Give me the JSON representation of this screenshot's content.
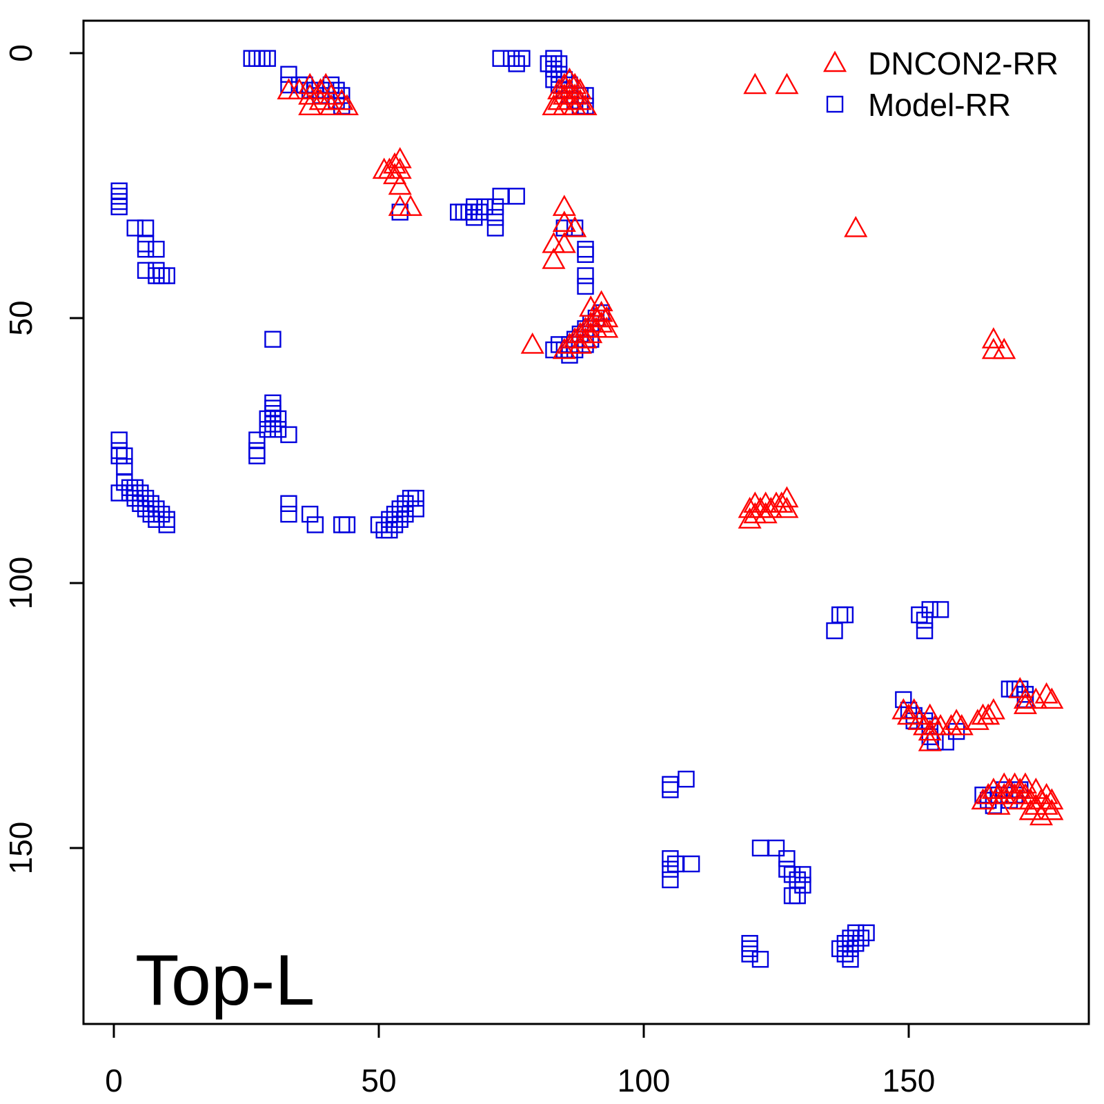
{
  "colors": {
    "dncon2": "#ff0000",
    "model": "#0000dd",
    "axis": "#000000"
  },
  "chart_data": {
    "type": "scatter",
    "title": "",
    "xlabel": "",
    "ylabel": "",
    "xlim": [
      -6,
      184
    ],
    "ylim": [
      -6,
      184
    ],
    "y_reversed": true,
    "grid": false,
    "legend_position": "top-right",
    "annotation": "Top-L",
    "x_ticks": [
      0,
      50,
      100,
      150
    ],
    "y_ticks": [
      0,
      50,
      100,
      150
    ],
    "series": [
      {
        "name": "DNCON2-RR",
        "marker": "triangle-open",
        "color": "#ff0000",
        "points": [
          [
            33,
            7
          ],
          [
            35,
            7
          ],
          [
            37,
            6
          ],
          [
            37,
            8
          ],
          [
            37,
            10
          ],
          [
            39,
            7
          ],
          [
            39,
            9
          ],
          [
            40,
            6
          ],
          [
            41,
            8
          ],
          [
            41,
            10
          ],
          [
            43,
            9
          ],
          [
            44,
            10
          ],
          [
            83,
            10
          ],
          [
            84,
            9
          ],
          [
            84,
            7
          ],
          [
            85,
            6
          ],
          [
            85,
            8
          ],
          [
            85,
            10
          ],
          [
            86,
            5
          ],
          [
            86,
            7
          ],
          [
            86,
            9
          ],
          [
            87,
            6
          ],
          [
            87,
            8
          ],
          [
            87,
            10
          ],
          [
            88,
            7
          ],
          [
            88,
            9
          ],
          [
            89,
            10
          ],
          [
            51,
            22
          ],
          [
            52,
            22
          ],
          [
            53,
            21
          ],
          [
            53,
            23
          ],
          [
            54,
            20
          ],
          [
            54,
            22
          ],
          [
            54,
            25
          ],
          [
            54,
            29
          ],
          [
            56,
            29
          ],
          [
            85,
            29
          ],
          [
            85,
            32
          ],
          [
            87,
            33
          ],
          [
            83,
            36
          ],
          [
            85,
            36
          ],
          [
            83,
            39
          ],
          [
            79,
            55
          ],
          [
            85,
            56
          ],
          [
            86,
            55
          ],
          [
            87,
            54
          ],
          [
            88,
            53
          ],
          [
            88,
            55
          ],
          [
            89,
            52
          ],
          [
            89,
            54
          ],
          [
            90,
            48
          ],
          [
            90,
            51
          ],
          [
            90,
            53
          ],
          [
            91,
            50
          ],
          [
            91,
            52
          ],
          [
            92,
            47
          ],
          [
            92,
            49
          ],
          [
            92,
            51
          ],
          [
            93,
            50
          ],
          [
            93,
            52
          ],
          [
            121,
            6
          ],
          [
            127,
            6
          ],
          [
            140,
            33
          ],
          [
            166,
            54
          ],
          [
            166,
            56
          ],
          [
            168,
            56
          ],
          [
            120,
            86
          ],
          [
            120,
            88
          ],
          [
            121,
            85
          ],
          [
            121,
            87
          ],
          [
            122,
            86
          ],
          [
            123,
            85
          ],
          [
            123,
            87
          ],
          [
            124,
            86
          ],
          [
            125,
            85
          ],
          [
            126,
            85
          ],
          [
            127,
            86
          ],
          [
            127,
            84
          ],
          [
            149,
            124
          ],
          [
            150,
            125
          ],
          [
            151,
            124
          ],
          [
            152,
            126
          ],
          [
            153,
            127
          ],
          [
            154,
            125
          ],
          [
            154,
            128
          ],
          [
            154,
            130
          ],
          [
            155,
            127
          ],
          [
            156,
            127
          ],
          [
            158,
            127
          ],
          [
            159,
            126
          ],
          [
            160,
            127
          ],
          [
            163,
            126
          ],
          [
            164,
            125
          ],
          [
            165,
            125
          ],
          [
            166,
            124
          ],
          [
            171,
            120
          ],
          [
            172,
            122
          ],
          [
            172,
            123
          ],
          [
            174,
            122
          ],
          [
            176,
            121
          ],
          [
            177,
            122
          ],
          [
            164,
            141
          ],
          [
            165,
            140
          ],
          [
            166,
            139
          ],
          [
            167,
            140
          ],
          [
            167,
            142
          ],
          [
            168,
            138
          ],
          [
            168,
            140
          ],
          [
            169,
            139
          ],
          [
            170,
            138
          ],
          [
            170,
            140
          ],
          [
            171,
            139
          ],
          [
            171,
            141
          ],
          [
            172,
            138
          ],
          [
            172,
            140
          ],
          [
            173,
            141
          ],
          [
            173,
            143
          ],
          [
            174,
            139
          ],
          [
            174,
            142
          ],
          [
            175,
            141
          ],
          [
            175,
            144
          ],
          [
            176,
            140
          ],
          [
            176,
            142
          ],
          [
            177,
            141
          ],
          [
            177,
            143
          ]
        ]
      },
      {
        "name": "Model-RR",
        "marker": "square-open",
        "color": "#0000dd",
        "points": [
          [
            26,
            1
          ],
          [
            27,
            1
          ],
          [
            28,
            1
          ],
          [
            29,
            1
          ],
          [
            33,
            4
          ],
          [
            33,
            6
          ],
          [
            35,
            6
          ],
          [
            36,
            6
          ],
          [
            37,
            7
          ],
          [
            38,
            7
          ],
          [
            39,
            8
          ],
          [
            40,
            7
          ],
          [
            41,
            6
          ],
          [
            42,
            7
          ],
          [
            42,
            9
          ],
          [
            43,
            8
          ],
          [
            43,
            10
          ],
          [
            73,
            1
          ],
          [
            75,
            1
          ],
          [
            76,
            2
          ],
          [
            77,
            1
          ],
          [
            82,
            2
          ],
          [
            83,
            1
          ],
          [
            83,
            3
          ],
          [
            83,
            5
          ],
          [
            84,
            2
          ],
          [
            84,
            4
          ],
          [
            84,
            6
          ],
          [
            85,
            5
          ],
          [
            85,
            7
          ],
          [
            86,
            6
          ],
          [
            86,
            8
          ],
          [
            87,
            9
          ],
          [
            88,
            8
          ],
          [
            88,
            10
          ],
          [
            89,
            8
          ],
          [
            89,
            10
          ],
          [
            1,
            26
          ],
          [
            1,
            27
          ],
          [
            1,
            28
          ],
          [
            1,
            29
          ],
          [
            4,
            33
          ],
          [
            6,
            33
          ],
          [
            6,
            36
          ],
          [
            6,
            37
          ],
          [
            8,
            37
          ],
          [
            6,
            41
          ],
          [
            8,
            41
          ],
          [
            8,
            42
          ],
          [
            9,
            42
          ],
          [
            10,
            42
          ],
          [
            54,
            30
          ],
          [
            65,
            30
          ],
          [
            66,
            30
          ],
          [
            67,
            30
          ],
          [
            68,
            29
          ],
          [
            68,
            31
          ],
          [
            69,
            30
          ],
          [
            70,
            29
          ],
          [
            72,
            29
          ],
          [
            72,
            31
          ],
          [
            72,
            33
          ],
          [
            73,
            27
          ],
          [
            76,
            27
          ],
          [
            85,
            33
          ],
          [
            87,
            33
          ],
          [
            89,
            37
          ],
          [
            89,
            38
          ],
          [
            89,
            42
          ],
          [
            89,
            44
          ],
          [
            30,
            54
          ],
          [
            83,
            56
          ],
          [
            84,
            55
          ],
          [
            85,
            56
          ],
          [
            86,
            55
          ],
          [
            86,
            57
          ],
          [
            87,
            54
          ],
          [
            87,
            56
          ],
          [
            88,
            53
          ],
          [
            89,
            52
          ],
          [
            90,
            51
          ],
          [
            91,
            50
          ],
          [
            92,
            49
          ],
          [
            89,
            55
          ],
          [
            90,
            54
          ],
          [
            30,
            66
          ],
          [
            30,
            67
          ],
          [
            30,
            68
          ],
          [
            29,
            69
          ],
          [
            29,
            71
          ],
          [
            30,
            70
          ],
          [
            31,
            69
          ],
          [
            31,
            71
          ],
          [
            33,
            72
          ],
          [
            27,
            73
          ],
          [
            27,
            75
          ],
          [
            27,
            76
          ],
          [
            1,
            73
          ],
          [
            1,
            75
          ],
          [
            1,
            76
          ],
          [
            2,
            76
          ],
          [
            2,
            78
          ],
          [
            1,
            83
          ],
          [
            2,
            81
          ],
          [
            3,
            82
          ],
          [
            3,
            83
          ],
          [
            4,
            82
          ],
          [
            4,
            84
          ],
          [
            5,
            83
          ],
          [
            5,
            85
          ],
          [
            6,
            84
          ],
          [
            6,
            86
          ],
          [
            7,
            85
          ],
          [
            7,
            87
          ],
          [
            8,
            86
          ],
          [
            8,
            88
          ],
          [
            9,
            87
          ],
          [
            10,
            88
          ],
          [
            10,
            89
          ],
          [
            33,
            85
          ],
          [
            33,
            87
          ],
          [
            37,
            87
          ],
          [
            38,
            89
          ],
          [
            43,
            89
          ],
          [
            44,
            89
          ],
          [
            50,
            89
          ],
          [
            51,
            90
          ],
          [
            52,
            88
          ],
          [
            52,
            90
          ],
          [
            53,
            87
          ],
          [
            53,
            89
          ],
          [
            54,
            86
          ],
          [
            54,
            88
          ],
          [
            55,
            85
          ],
          [
            55,
            87
          ],
          [
            56,
            84
          ],
          [
            57,
            84
          ],
          [
            57,
            86
          ],
          [
            137,
            106
          ],
          [
            138,
            106
          ],
          [
            136,
            109
          ],
          [
            152,
            106
          ],
          [
            153,
            107
          ],
          [
            153,
            109
          ],
          [
            154,
            105
          ],
          [
            156,
            105
          ],
          [
            149,
            122
          ],
          [
            150,
            124
          ],
          [
            151,
            125
          ],
          [
            151,
            126
          ],
          [
            153,
            126
          ],
          [
            154,
            127
          ],
          [
            154,
            129
          ],
          [
            155,
            130
          ],
          [
            157,
            130
          ],
          [
            159,
            128
          ],
          [
            169,
            120
          ],
          [
            170,
            120
          ],
          [
            171,
            120
          ],
          [
            172,
            121
          ],
          [
            172,
            122
          ],
          [
            164,
            140
          ],
          [
            165,
            141
          ],
          [
            166,
            140
          ],
          [
            166,
            142
          ],
          [
            167,
            140
          ],
          [
            168,
            139
          ],
          [
            169,
            141
          ],
          [
            170,
            140
          ],
          [
            171,
            139
          ],
          [
            105,
            138
          ],
          [
            105,
            139
          ],
          [
            108,
            137
          ],
          [
            105,
            152
          ],
          [
            105,
            154
          ],
          [
            105,
            156
          ],
          [
            106,
            153
          ],
          [
            109,
            153
          ],
          [
            122,
            150
          ],
          [
            125,
            150
          ],
          [
            127,
            152
          ],
          [
            127,
            154
          ],
          [
            128,
            155
          ],
          [
            129,
            156
          ],
          [
            130,
            155
          ],
          [
            128,
            159
          ],
          [
            129,
            159
          ],
          [
            130,
            157
          ],
          [
            120,
            168
          ],
          [
            120,
            169
          ],
          [
            120,
            170
          ],
          [
            122,
            171
          ],
          [
            137,
            169
          ],
          [
            138,
            168
          ],
          [
            138,
            170
          ],
          [
            139,
            167
          ],
          [
            139,
            169
          ],
          [
            139,
            171
          ],
          [
            140,
            166
          ],
          [
            140,
            168
          ],
          [
            141,
            167
          ],
          [
            142,
            166
          ]
        ]
      }
    ]
  }
}
